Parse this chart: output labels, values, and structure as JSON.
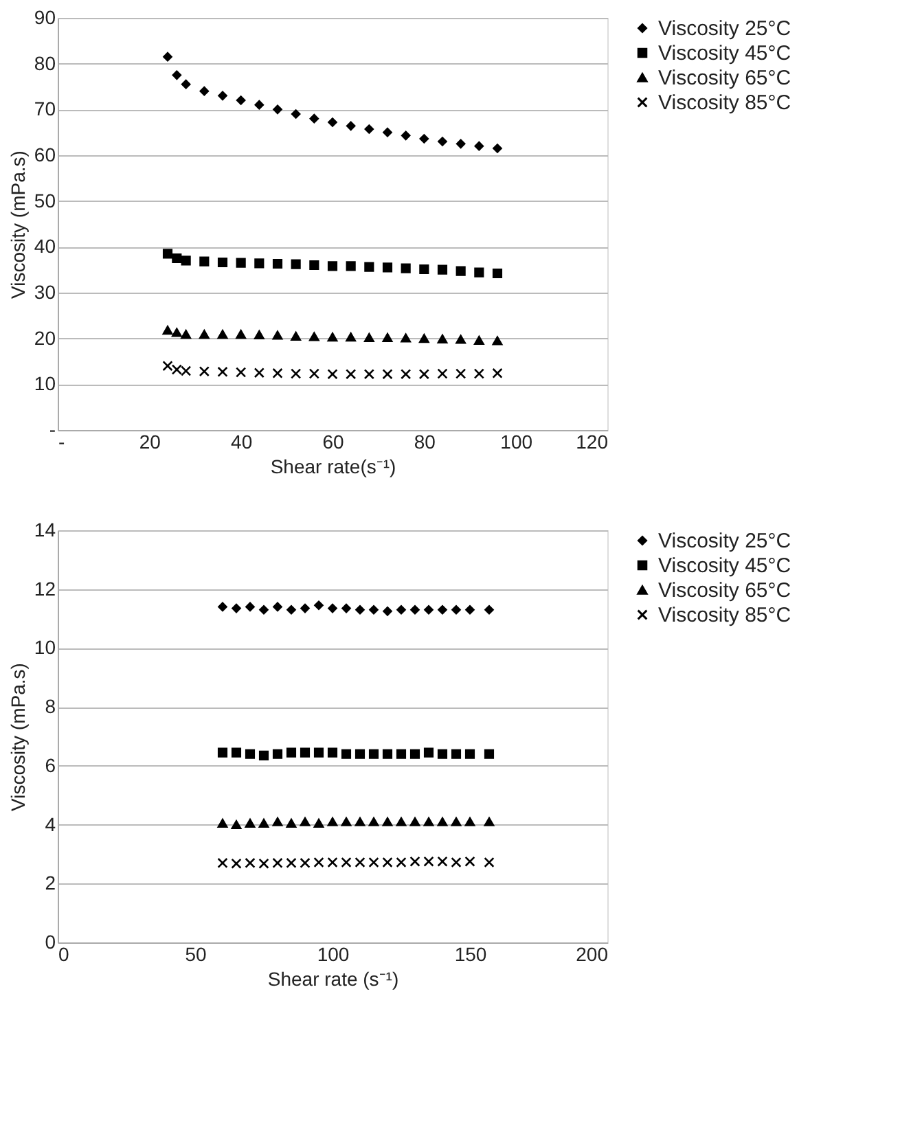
{
  "chart_data": [
    {
      "type": "scatter",
      "xlabel": "Shear rate(s⁻¹)",
      "ylabel": "Viscosity (mPa.s)",
      "xlim": [
        0,
        120
      ],
      "ylim": [
        0,
        90
      ],
      "xticks": [
        {
          "value": 0,
          "label": "-"
        },
        20,
        40,
        60,
        80,
        100,
        120
      ],
      "yticks": [
        {
          "value": 0,
          "label": "-"
        },
        10,
        20,
        30,
        40,
        50,
        60,
        70,
        80,
        90
      ],
      "grid": "y",
      "legend": "right",
      "x": [
        24,
        26,
        28,
        32,
        36,
        40,
        44,
        48,
        52,
        56,
        60,
        64,
        68,
        72,
        76,
        80,
        84,
        88,
        92,
        96
      ],
      "series": [
        {
          "name": "Viscosity 25°C",
          "color": "#000000",
          "marker": "diamond",
          "values": [
            81.5,
            77.5,
            75.5,
            74,
            73,
            72,
            71,
            70,
            69,
            68,
            67.2,
            66.4,
            65.7,
            65,
            64.3,
            63.6,
            63,
            62.5,
            62,
            61.5
          ]
        },
        {
          "name": "Viscosity 45°C",
          "color": "#000000",
          "marker": "square",
          "values": [
            38.5,
            37.5,
            37,
            36.8,
            36.6,
            36.5,
            36.4,
            36.3,
            36.2,
            36,
            35.8,
            35.8,
            35.6,
            35.5,
            35.3,
            35.1,
            35,
            34.7,
            34.4,
            34.2
          ]
        },
        {
          "name": "Viscosity 65°C",
          "color": "#000000",
          "marker": "triangle",
          "values": [
            21.8,
            21.3,
            20.9,
            20.9,
            20.9,
            20.9,
            20.8,
            20.7,
            20.5,
            20.4,
            20.3,
            20.3,
            20.2,
            20.2,
            20.1,
            20,
            19.9,
            19.8,
            19.6,
            19.5
          ]
        },
        {
          "name": "Viscosity 85°C",
          "color": "#000000",
          "marker": "cross",
          "values": [
            14,
            13.2,
            12.9,
            12.8,
            12.7,
            12.6,
            12.5,
            12.4,
            12.3,
            12.3,
            12.2,
            12.2,
            12.2,
            12.2,
            12.2,
            12.2,
            12.3,
            12.3,
            12.3,
            12.4
          ]
        }
      ]
    },
    {
      "type": "scatter",
      "xlabel": "Shear rate (s⁻¹)",
      "ylabel": "Viscosity (mPa.s)",
      "xlim": [
        0,
        200
      ],
      "ylim": [
        0,
        14
      ],
      "xticks": [
        0,
        50,
        100,
        150,
        200
      ],
      "yticks": [
        0,
        2,
        4,
        6,
        8,
        10,
        12,
        14
      ],
      "grid": "y",
      "legend": "right",
      "x": [
        60,
        65,
        70,
        75,
        80,
        85,
        90,
        95,
        100,
        105,
        110,
        115,
        120,
        125,
        130,
        135,
        140,
        145,
        150,
        157
      ],
      "series": [
        {
          "name": "Viscosity 25°C",
          "color": "#000000",
          "marker": "diamond",
          "values": [
            11.4,
            11.35,
            11.4,
            11.3,
            11.4,
            11.3,
            11.35,
            11.45,
            11.35,
            11.35,
            11.3,
            11.3,
            11.25,
            11.3,
            11.3,
            11.3,
            11.3,
            11.3,
            11.3,
            11.3
          ]
        },
        {
          "name": "Viscosity 45°C",
          "color": "#000000",
          "marker": "square",
          "values": [
            6.45,
            6.45,
            6.4,
            6.35,
            6.4,
            6.45,
            6.45,
            6.45,
            6.45,
            6.4,
            6.4,
            6.4,
            6.4,
            6.4,
            6.4,
            6.45,
            6.4,
            6.4,
            6.4,
            6.4
          ]
        },
        {
          "name": "Viscosity 65°C",
          "color": "#000000",
          "marker": "triangle",
          "values": [
            4.05,
            4.0,
            4.05,
            4.05,
            4.1,
            4.05,
            4.1,
            4.05,
            4.1,
            4.1,
            4.1,
            4.1,
            4.1,
            4.1,
            4.1,
            4.1,
            4.1,
            4.1,
            4.1,
            4.1
          ]
        },
        {
          "name": "Viscosity 85°C",
          "color": "#000000",
          "marker": "cross",
          "values": [
            2.7,
            2.68,
            2.7,
            2.68,
            2.7,
            2.7,
            2.7,
            2.72,
            2.72,
            2.72,
            2.72,
            2.72,
            2.72,
            2.72,
            2.75,
            2.75,
            2.75,
            2.72,
            2.75,
            2.72
          ]
        }
      ]
    }
  ]
}
